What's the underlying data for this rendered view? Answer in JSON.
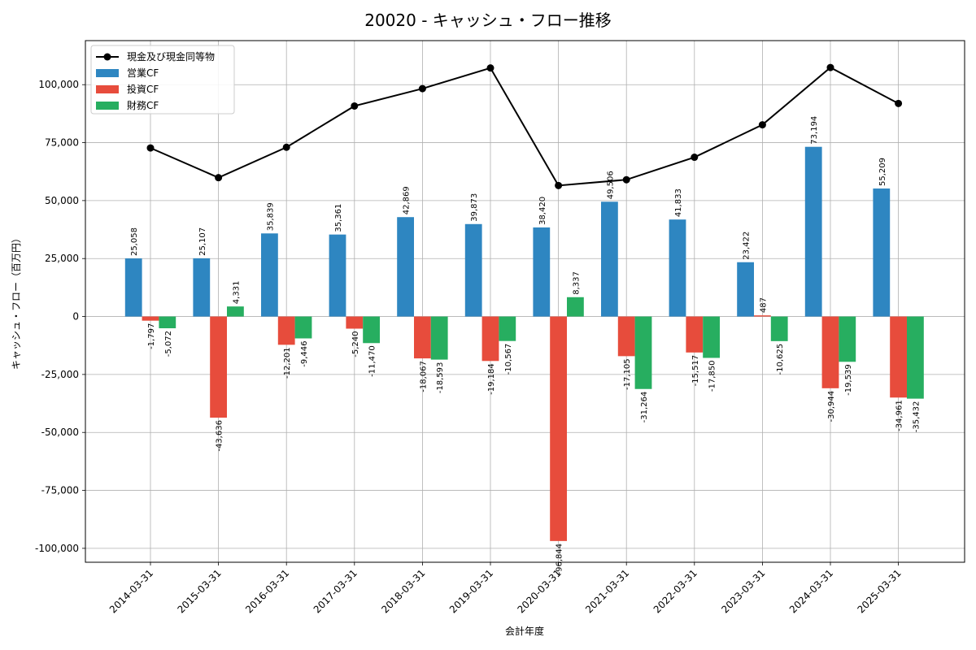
{
  "chart_data": {
    "type": "bar",
    "title": "20020 - キャッシュ・フロー推移",
    "xlabel": "会計年度",
    "ylabel": "キャッシュ・フロー（百万円）",
    "categories": [
      "2014-03-31",
      "2015-03-31",
      "2016-03-31",
      "2017-03-31",
      "2018-03-31",
      "2019-03-31",
      "2020-03-31",
      "2021-03-31",
      "2022-03-31",
      "2023-03-31",
      "2024-03-31",
      "2025-03-31"
    ],
    "ylim": [
      -106000,
      119000
    ],
    "yticks": [
      -100000,
      -75000,
      -50000,
      -25000,
      0,
      25000,
      50000,
      75000,
      100000
    ],
    "ytick_labels": [
      "-100,000",
      "-75,000",
      "-50,000",
      "-25,000",
      "0",
      "25,000",
      "50,000",
      "75,000",
      "100,000"
    ],
    "grid": true,
    "legend_position": "top-left",
    "series": [
      {
        "name": "営業CF",
        "kind": "bar",
        "color": "#2e86c1",
        "values": [
          25058,
          25107,
          35839,
          35361,
          42869,
          39873,
          38420,
          49506,
          41833,
          23422,
          73194,
          55209
        ]
      },
      {
        "name": "投資CF",
        "kind": "bar",
        "color": "#e74c3c",
        "values": [
          -1797,
          -43636,
          -12201,
          -5240,
          -18067,
          -19184,
          -96844,
          -17105,
          -15517,
          487,
          -30944,
          -34961
        ]
      },
      {
        "name": "財務CF",
        "kind": "bar",
        "color": "#27ae60",
        "values": [
          -5072,
          4331,
          -9446,
          -11470,
          -18593,
          -10567,
          8337,
          -31264,
          -17850,
          -10625,
          -19539,
          -35432
        ]
      },
      {
        "name": "現金及び現金同等物",
        "kind": "line",
        "color": "#000000",
        "values": [
          72700,
          59900,
          73000,
          90800,
          98300,
          107200,
          56500,
          59000,
          68700,
          82700,
          107400,
          91900
        ]
      }
    ]
  }
}
